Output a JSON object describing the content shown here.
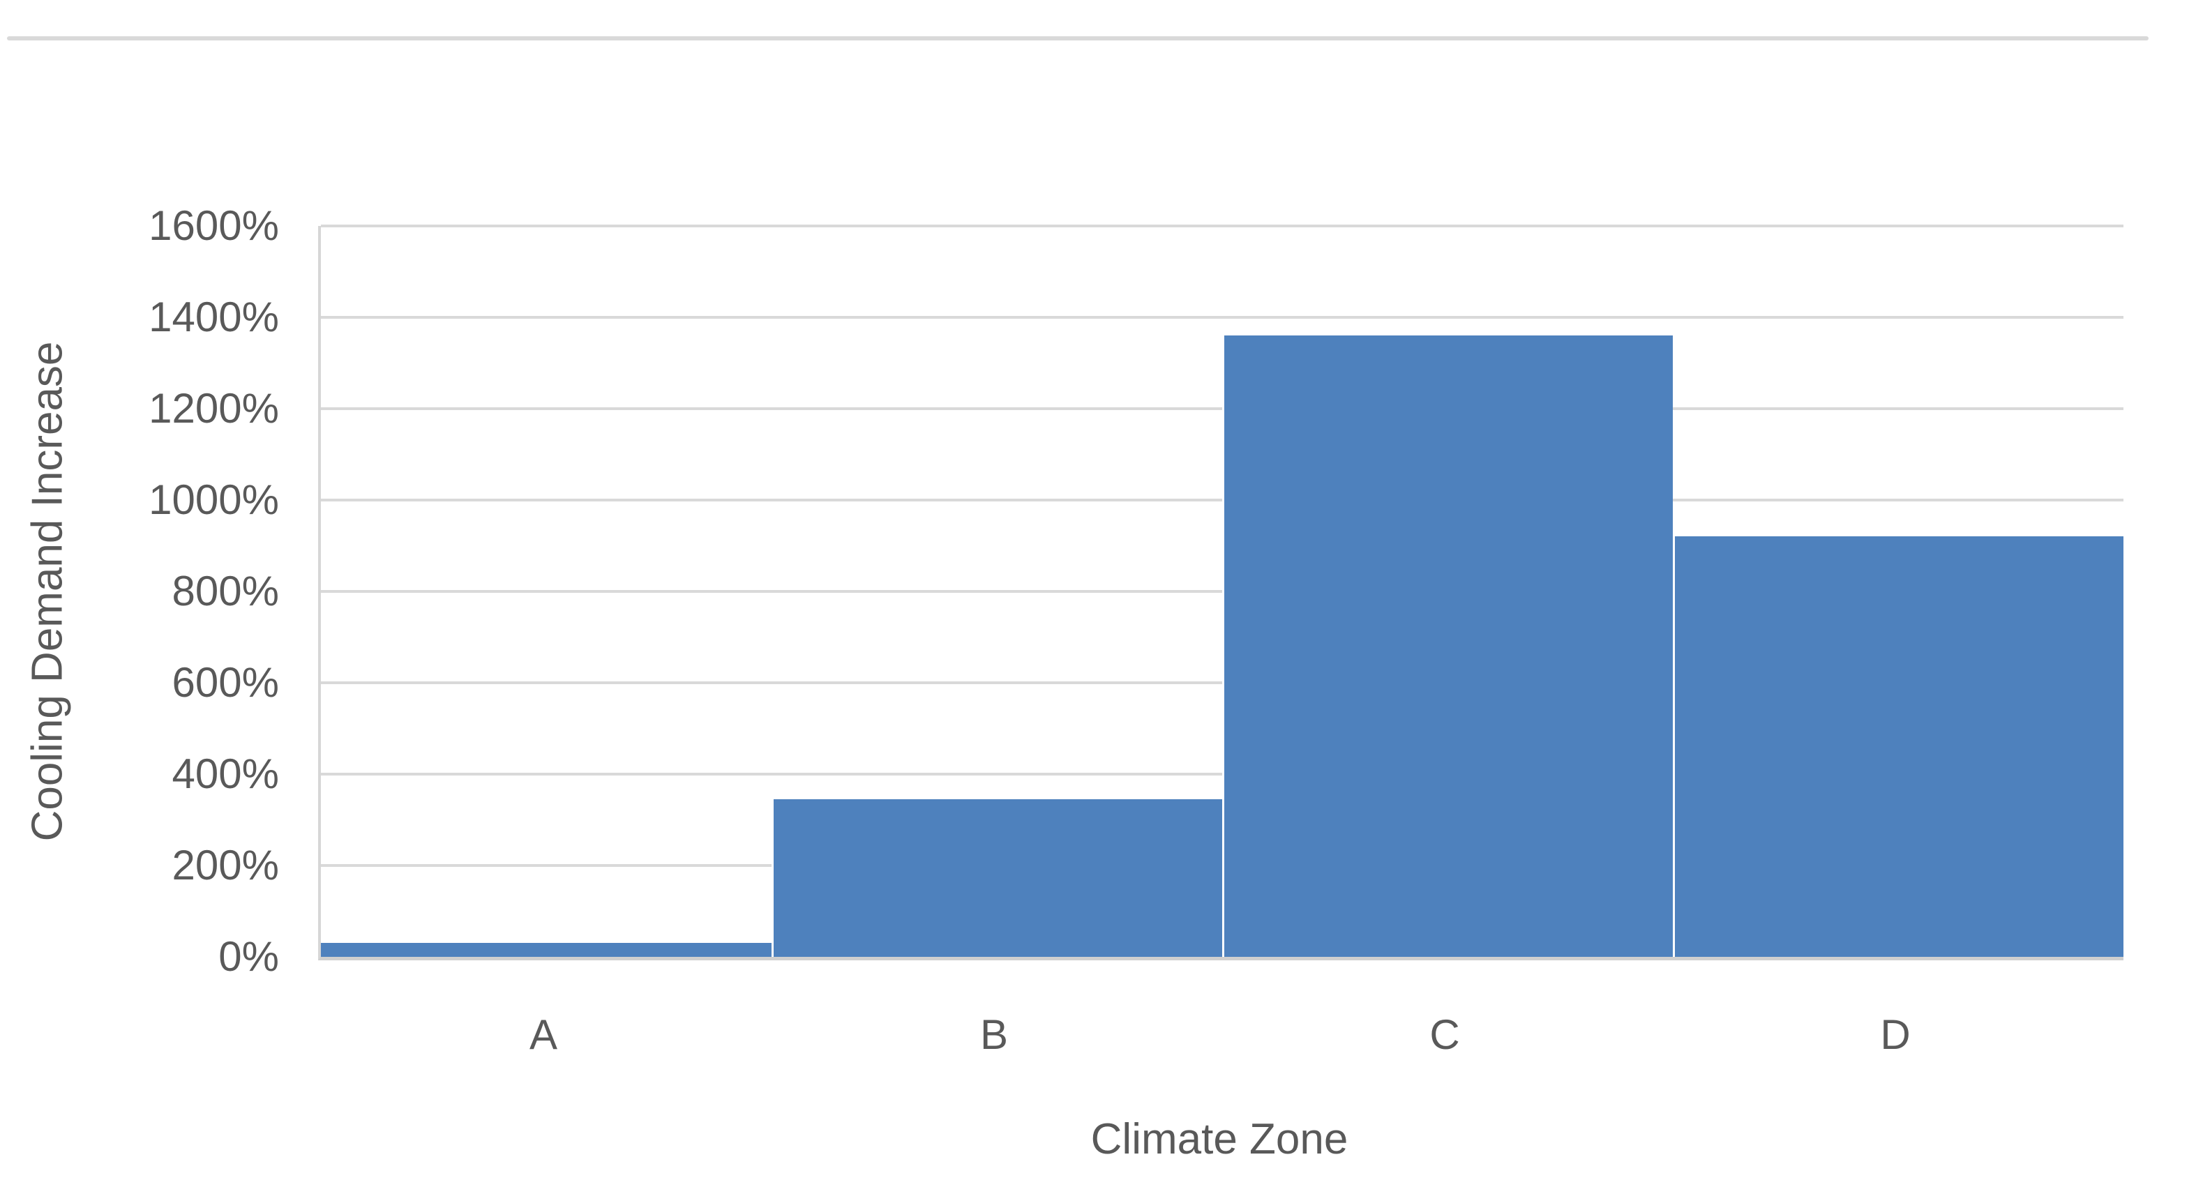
{
  "page": {
    "background_color": "#ffffff",
    "divider_color": "#d9d9d9"
  },
  "chart_data": {
    "type": "bar",
    "title": "",
    "categories": [
      "A",
      "B",
      "C",
      "D"
    ],
    "values": [
      30,
      345,
      1360,
      920
    ],
    "xlabel": "Climate Zone",
    "ylabel": "Cooling Demand Increase",
    "ylim": [
      0,
      1600
    ],
    "ytick_step": 200,
    "ytick_labels": [
      "0%",
      "200%",
      "400%",
      "600%",
      "800%",
      "1000%",
      "1200%",
      "1400%",
      "1600%"
    ],
    "grid": true,
    "legend": false,
    "bar_gap": 0,
    "colors": {
      "bar_fill": "#4e81bd",
      "gridline": "#d9d9d9",
      "axis_line": "#d6d6d6",
      "text": "#595959"
    }
  }
}
